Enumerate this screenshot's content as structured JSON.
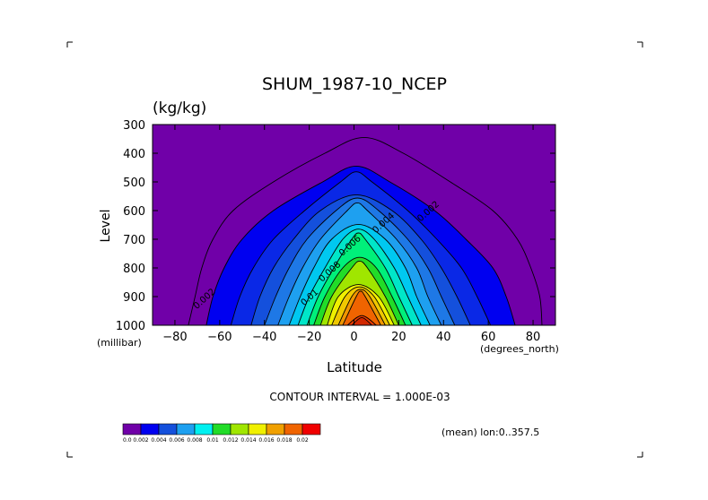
{
  "chart_data": {
    "type": "contour",
    "title": "SHUM_1987-10_NCEP",
    "units": "(kg/kg)",
    "xlabel": "Latitude",
    "ylabel": "Level",
    "x_unit_label": "(degrees_north)",
    "y_unit_label": "(millibar)",
    "xlim": [
      -90,
      90
    ],
    "ylim": [
      1000,
      300
    ],
    "x_ticks": [
      -80,
      -60,
      -40,
      -20,
      0,
      20,
      40,
      60,
      80
    ],
    "x_tick_labels": [
      "−80",
      "−60",
      "−40",
      "−20",
      "0",
      "20",
      "40",
      "60",
      "80"
    ],
    "y_ticks": [
      300,
      400,
      500,
      600,
      700,
      800,
      900,
      1000
    ],
    "y_tick_labels": [
      "300",
      "400",
      "500",
      "600",
      "700",
      "800",
      "900",
      "1000"
    ],
    "contour_interval_text": "CONTOUR INTERVAL = 1.000E-03",
    "subset_text": "(mean) lon:0..357.5",
    "contour_labels": [
      {
        "text": "0.002",
        "lat": -66,
        "lev": 915
      },
      {
        "text": "0.002",
        "lat": 34,
        "lev": 610
      },
      {
        "text": "0.004",
        "lat": 14,
        "lev": 650
      },
      {
        "text": "0.006",
        "lat": -1,
        "lev": 730
      },
      {
        "text": "0.008",
        "lat": -10,
        "lev": 820
      },
      {
        "text": "0.01",
        "lat": -19,
        "lev": 910
      }
    ],
    "fill_levels": [
      0.002,
      0.003,
      0.004,
      0.005,
      0.006,
      0.007,
      0.008,
      0.009,
      0.01,
      0.011,
      0.012,
      0.013,
      0.014,
      0.015,
      0.016,
      0.017
    ],
    "fill_colors": [
      "#0000f0",
      "#0a28e6",
      "#1450dc",
      "#1e78e6",
      "#1ea0f0",
      "#00c8f0",
      "#00e6c8",
      "#00f07a",
      "#22dc28",
      "#a0e600",
      "#f0f000",
      "#f0c800",
      "#f09600",
      "#f06400",
      "#f03c00",
      "#d22800"
    ],
    "background_color": "#7000a8",
    "line_levels": [
      0.001,
      0.002,
      0.003,
      0.004,
      0.005,
      0.006,
      0.007,
      0.008,
      0.009,
      0.01,
      0.011,
      0.012,
      0.013,
      0.014,
      0.015,
      0.016,
      0.017
    ],
    "half_width": {
      "levels": [
        1000,
        900,
        800,
        700,
        600,
        500,
        400,
        300
      ],
      "0.001": [
        [
          -74,
          84
        ],
        [
          -71,
          83
        ],
        [
          -68,
          79
        ],
        [
          -63,
          73
        ],
        [
          -54,
          62
        ],
        [
          -36,
          43
        ],
        [
          -13,
          22
        ],
        null
      ],
      "0.002": [
        [
          -66,
          72
        ],
        [
          -63,
          68
        ],
        [
          -58,
          62
        ],
        [
          -50,
          50
        ],
        [
          -36,
          36
        ],
        [
          -14,
          16
        ],
        null,
        null
      ],
      "0.003": [
        [
          -55,
          61
        ],
        [
          -51,
          55
        ],
        [
          -45,
          48
        ],
        [
          -36,
          37
        ],
        [
          -22,
          24
        ],
        [
          -6,
          8
        ],
        null,
        null
      ],
      "0.004": [
        [
          -46,
          52
        ],
        [
          -42,
          46
        ],
        [
          -36,
          39
        ],
        [
          -27,
          30
        ],
        [
          -15,
          17
        ],
        null,
        null,
        null
      ],
      "0.005": [
        [
          -40,
          45
        ],
        [
          -35,
          39
        ],
        [
          -29,
          33
        ],
        [
          -21,
          24
        ],
        [
          -8,
          11
        ],
        null,
        null,
        null
      ],
      "0.006": [
        [
          -34,
          39
        ],
        [
          -29,
          33
        ],
        [
          -23,
          28
        ],
        [
          -15,
          19
        ],
        [
          -3,
          6
        ],
        null,
        null,
        null
      ],
      "0.007": [
        [
          -29,
          34
        ],
        [
          -24,
          28
        ],
        [
          -18,
          23
        ],
        [
          -10,
          14
        ],
        null,
        null,
        null,
        null
      ],
      "0.008": [
        [
          -25,
          30
        ],
        [
          -20,
          24
        ],
        [
          -13,
          18
        ],
        [
          -5,
          9
        ],
        null,
        null,
        null,
        null
      ],
      "0.009": [
        [
          -21,
          26
        ],
        [
          -16,
          20
        ],
        [
          -9,
          14
        ],
        [
          -1,
          5
        ],
        null,
        null,
        null,
        null
      ],
      "0.010": [
        [
          -18,
          23
        ],
        [
          -13,
          17
        ],
        [
          -5,
          10
        ],
        null,
        null,
        null,
        null,
        null
      ],
      "0.011": [
        [
          -15,
          20
        ],
        [
          -10,
          14
        ],
        [
          -1,
          6
        ],
        null,
        null,
        null,
        null,
        null
      ],
      "0.012": [
        [
          -12,
          18
        ],
        [
          -7,
          11
        ],
        null,
        null,
        null,
        null,
        null,
        null
      ],
      "0.013": [
        [
          -10,
          16
        ],
        [
          -4,
          9
        ],
        null,
        null,
        null,
        null,
        null,
        null
      ],
      "0.014": [
        [
          -7,
          14
        ],
        [
          -1,
          7
        ],
        null,
        null,
        null,
        null,
        null,
        null
      ],
      "0.015": [
        [
          -5,
          12
        ],
        [
          1,
          5
        ],
        null,
        null,
        null,
        null,
        null,
        null
      ],
      "0.016": [
        [
          -3,
          10
        ],
        null,
        null,
        null,
        null,
        null,
        null,
        null
      ],
      "0.017": [
        [
          -1,
          8
        ],
        null,
        null,
        null,
        null,
        null,
        null,
        null
      ]
    },
    "colorbar": {
      "colors": [
        "#7000a8",
        "#0000f0",
        "#1450dc",
        "#1ea0f0",
        "#00f0f0",
        "#22dc28",
        "#a0e600",
        "#f0f000",
        "#f0a000",
        "#f06400",
        "#f00000"
      ],
      "labels": [
        "0.0",
        "0.002",
        "0.004",
        "0.006",
        "0.008",
        "0.01",
        "0.012",
        "0.014",
        "0.016",
        "0.018",
        "0.02"
      ]
    }
  }
}
